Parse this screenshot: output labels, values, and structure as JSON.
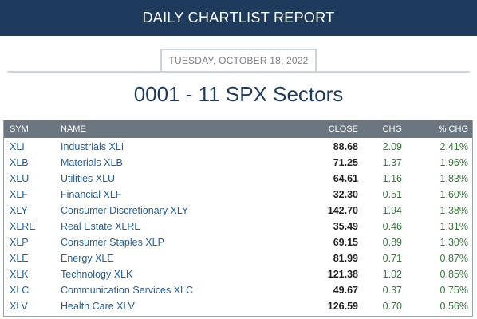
{
  "header": {
    "title": "DAILY CHARTLIST REPORT"
  },
  "report": {
    "date": "TUESDAY, OCTOBER 18, 2022",
    "list_title": "0001 - 11 SPX Sectors"
  },
  "table": {
    "columns": {
      "sym": "SYM",
      "name": "NAME",
      "close": "CLOSE",
      "chg": "CHG",
      "pct": "% CHG"
    },
    "rows": [
      {
        "sym": "XLI",
        "name": "Industrials XLI",
        "close": "88.68",
        "chg": "2.09",
        "pct": "2.41%"
      },
      {
        "sym": "XLB",
        "name": "Materials XLB",
        "close": "71.25",
        "chg": "1.37",
        "pct": "1.96%"
      },
      {
        "sym": "XLU",
        "name": "Utilities XLU",
        "close": "64.61",
        "chg": "1.16",
        "pct": "1.83%"
      },
      {
        "sym": "XLF",
        "name": "Financial XLF",
        "close": "32.30",
        "chg": "0.51",
        "pct": "1.60%"
      },
      {
        "sym": "XLY",
        "name": "Consumer Discretionary XLY",
        "close": "142.70",
        "chg": "1.94",
        "pct": "1.38%"
      },
      {
        "sym": "XLRE",
        "name": "Real Estate XLRE",
        "close": "35.49",
        "chg": "0.46",
        "pct": "1.31%"
      },
      {
        "sym": "XLP",
        "name": "Consumer Staples XLP",
        "close": "69.15",
        "chg": "0.89",
        "pct": "1.30%"
      },
      {
        "sym": "XLE",
        "name": "Energy XLE",
        "close": "81.99",
        "chg": "0.71",
        "pct": "0.87%"
      },
      {
        "sym": "XLK",
        "name": "Technology XLK",
        "close": "121.38",
        "chg": "1.02",
        "pct": "0.85%"
      },
      {
        "sym": "XLC",
        "name": "Communication Services XLC",
        "close": "49.67",
        "chg": "0.37",
        "pct": "0.75%"
      },
      {
        "sym": "XLV",
        "name": "Health Care XLV",
        "close": "126.59",
        "chg": "0.70",
        "pct": "0.56%"
      }
    ]
  },
  "colors": {
    "banner": "#1e3a5c",
    "table_header": "#6b7681",
    "link": "#1f5f9c",
    "positive": "#2e7d32"
  }
}
